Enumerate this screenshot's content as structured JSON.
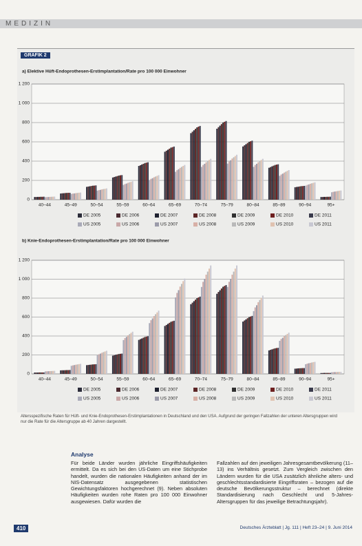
{
  "header": {
    "section": "MEDIZIN"
  },
  "figure_label": "GRAFIK 2",
  "chart_data": [
    {
      "type": "bar",
      "title": "a) Elektive Hüft-Endoprothesen-Erstimplantation/Rate pro 100 000 Einwohner",
      "categories": [
        "40–44",
        "45–49",
        "50–54",
        "55–59",
        "60–64",
        "65–69",
        "70–74",
        "75–79",
        "80–84",
        "85–89",
        "90–94",
        "95+"
      ],
      "ylim": [
        0,
        1200
      ],
      "yticks": [
        0,
        200,
        400,
        600,
        800,
        {
          "value": 1000,
          "label": "1 000"
        },
        {
          "value": 1200,
          "label": "1 200"
        }
      ],
      "grid": true,
      "series": [
        {
          "name": "DE 2005",
          "color": "#2b2c3a",
          "values": [
            28,
            64,
            133,
            230,
            350,
            497,
            690,
            736,
            552,
            331,
            129,
            28
          ]
        },
        {
          "name": "DE 2006",
          "color": "#4a2a30",
          "values": [
            28,
            66,
            136,
            235,
            357,
            508,
            705,
            752,
            564,
            338,
            132,
            28
          ]
        },
        {
          "name": "DE 2007",
          "color": "#1f2230",
          "values": [
            29,
            67,
            139,
            240,
            365,
            518,
            720,
            768,
            576,
            346,
            134,
            29
          ]
        },
        {
          "name": "DE 2008",
          "color": "#5c2626",
          "values": [
            29,
            69,
            142,
            245,
            372,
            529,
            735,
            784,
            588,
            353,
            137,
            29
          ]
        },
        {
          "name": "DE 2009",
          "color": "#303030",
          "values": [
            30,
            70,
            145,
            250,
            380,
            540,
            750,
            800,
            600,
            360,
            140,
            30
          ]
        },
        {
          "name": "DE 2010",
          "color": "#6e2020",
          "values": [
            30,
            71,
            146,
            253,
            384,
            545,
            758,
            808,
            606,
            364,
            141,
            30
          ]
        },
        {
          "name": "DE 2011",
          "color": "#3a3b4c",
          "values": [
            31,
            71,
            148,
            255,
            388,
            551,
            765,
            816,
            612,
            367,
            143,
            31
          ]
        },
        {
          "name": "US 2005",
          "color": "#a9aab8",
          "values": [
            26,
            60,
            94,
            153,
            204,
            289,
            340,
            374,
            340,
            247,
            145,
            77
          ]
        },
        {
          "name": "US 2006",
          "color": "#c9a8a8",
          "values": [
            27,
            63,
            99,
            162,
            216,
            306,
            360,
            396,
            360,
            261,
            153,
            81
          ]
        },
        {
          "name": "US 2007",
          "color": "#9c9caa",
          "values": [
            28,
            65,
            102,
            167,
            223,
            316,
            372,
            409,
            372,
            270,
            158,
            84
          ]
        },
        {
          "name": "US 2008",
          "color": "#d8b0a6",
          "values": [
            29,
            68,
            107,
            175,
            233,
            330,
            388,
            427,
            388,
            281,
            165,
            87
          ]
        },
        {
          "name": "US 2009",
          "color": "#b9b9b9",
          "values": [
            30,
            70,
            110,
            180,
            240,
            340,
            400,
            440,
            400,
            290,
            170,
            90
          ]
        },
        {
          "name": "US 2010",
          "color": "#e0c2b0",
          "values": [
            31,
            72,
            113,
            185,
            247,
            350,
            412,
            453,
            412,
            299,
            175,
            93
          ]
        },
        {
          "name": "US 2011",
          "color": "#c8c8d2",
          "values": [
            32,
            74,
            117,
            191,
            254,
            360,
            424,
            466,
            424,
            307,
            180,
            95
          ]
        }
      ]
    },
    {
      "type": "bar",
      "title": "b) Knie-Endoprothesen-Erstimplantation/Rate pro 100 000 Einwohner",
      "categories": [
        "40–44",
        "45–49",
        "50–54",
        "55–59",
        "60–64",
        "65–69",
        "70–74",
        "75–79",
        "80–84",
        "85–89",
        "90–94",
        "95+"
      ],
      "ylim": [
        0,
        1200
      ],
      "yticks": [
        0,
        200,
        400,
        600,
        800,
        {
          "value": 1000,
          "label": "1 000"
        },
        {
          "value": 1200,
          "label": "1 200"
        }
      ],
      "grid": true,
      "series": [
        {
          "name": "DE 2005",
          "color": "#2b2c3a",
          "values": [
            14,
            37,
            92,
            193,
            359,
            506,
            736,
            846,
            552,
            248,
            55,
            9
          ]
        },
        {
          "name": "DE 2006",
          "color": "#4a2a30",
          "values": [
            14,
            38,
            94,
            197,
            367,
            517,
            752,
            865,
            564,
            254,
            56,
            9
          ]
        },
        {
          "name": "DE 2007",
          "color": "#1f2230",
          "values": [
            14,
            38,
            96,
            202,
            374,
            528,
            768,
            883,
            576,
            259,
            58,
            10
          ]
        },
        {
          "name": "DE 2008",
          "color": "#5c2626",
          "values": [
            15,
            39,
            98,
            206,
            382,
            539,
            784,
            902,
            588,
            265,
            59,
            10
          ]
        },
        {
          "name": "DE 2009",
          "color": "#303030",
          "values": [
            15,
            40,
            100,
            210,
            390,
            550,
            800,
            920,
            600,
            270,
            60,
            10
          ]
        },
        {
          "name": "DE 2010",
          "color": "#6e2020",
          "values": [
            15,
            40,
            101,
            212,
            394,
            556,
            808,
            929,
            606,
            273,
            61,
            10
          ]
        },
        {
          "name": "DE 2011",
          "color": "#3a3b4c",
          "values": [
            15,
            41,
            102,
            214,
            398,
            561,
            816,
            938,
            612,
            275,
            61,
            10
          ]
        },
        {
          "name": "US 2005",
          "color": "#a9aab8",
          "values": [
            26,
            85,
            196,
            357,
            536,
            808,
            918,
            918,
            663,
            349,
            102,
            17
          ]
        },
        {
          "name": "US 2006",
          "color": "#c9a8a8",
          "values": [
            27,
            90,
            207,
            378,
            567,
            855,
            972,
            972,
            702,
            369,
            108,
            18
          ]
        },
        {
          "name": "US 2007",
          "color": "#9c9caa",
          "values": [
            28,
            93,
            214,
            391,
            586,
            884,
            1004,
            1004,
            725,
            381,
            112,
            19
          ]
        },
        {
          "name": "US 2008",
          "color": "#d8b0a6",
          "values": [
            29,
            97,
            223,
            407,
            611,
            922,
            1048,
            1048,
            757,
            398,
            116,
            19
          ]
        },
        {
          "name": "US 2009",
          "color": "#b9b9b9",
          "values": [
            30,
            100,
            230,
            420,
            630,
            950,
            1080,
            1080,
            780,
            410,
            120,
            20
          ]
        },
        {
          "name": "US 2010",
          "color": "#e0c2b0",
          "values": [
            31,
            103,
            237,
            433,
            649,
            979,
            1112,
            1112,
            803,
            422,
            124,
            21
          ]
        },
        {
          "name": "US 2011",
          "color": "#c8c8d2",
          "values": [
            32,
            106,
            244,
            445,
            668,
            1007,
            1145,
            1145,
            827,
            435,
            127,
            21
          ]
        }
      ]
    }
  ],
  "caption": "Altersspezifische Raten für Hüft- und Knie-Endoprothesen-Erstimplantationen in Deutschland und den USA. Aufgrund der geringen Fallzahlen der unteren Altersgruppen wird nur die Rate für die Altersgruppe ab 40 Jahren dargestellt.",
  "section_title": "Analyse",
  "body": [
    "Für beide Länder wurden jährliche Eingriffshäufigkeiten ermittelt. Da es sich bei den US-Daten um eine Stichprobe handelt, wurden die nationalen Häufigkeiten anhand der im NIS-Datensatz ausgegebenen statistischen Gewichtungsfaktoren hochgerechnet (9). Neben absoluten Häufigkeiten wurden rohe Raten pro 100 000 Einwohner ausgewiesen. Dafür wurden die",
    "Fallzahlen auf den jeweiligen Jahresgesamtbevölkerung (11–13) ins Verhältnis gesetzt. Zum Vergleich zwischen den Ländern wurden für die USA zusätzlich ähnliche alters- und geschlechtsstandardisierte Eingriffsraten – bezogen auf die deutsche Bevölkerungsstruktur – berechnet (direkte Standardisierung nach Geschlecht und 5-Jahres-Altersgruppen für das jeweilige Betrachtungsjahr)."
  ],
  "footer": {
    "page": "410",
    "journal": "Deutsches Ärzteblatt | Jg. 111 | Heft 23–24 | 9. Juni 2014"
  }
}
